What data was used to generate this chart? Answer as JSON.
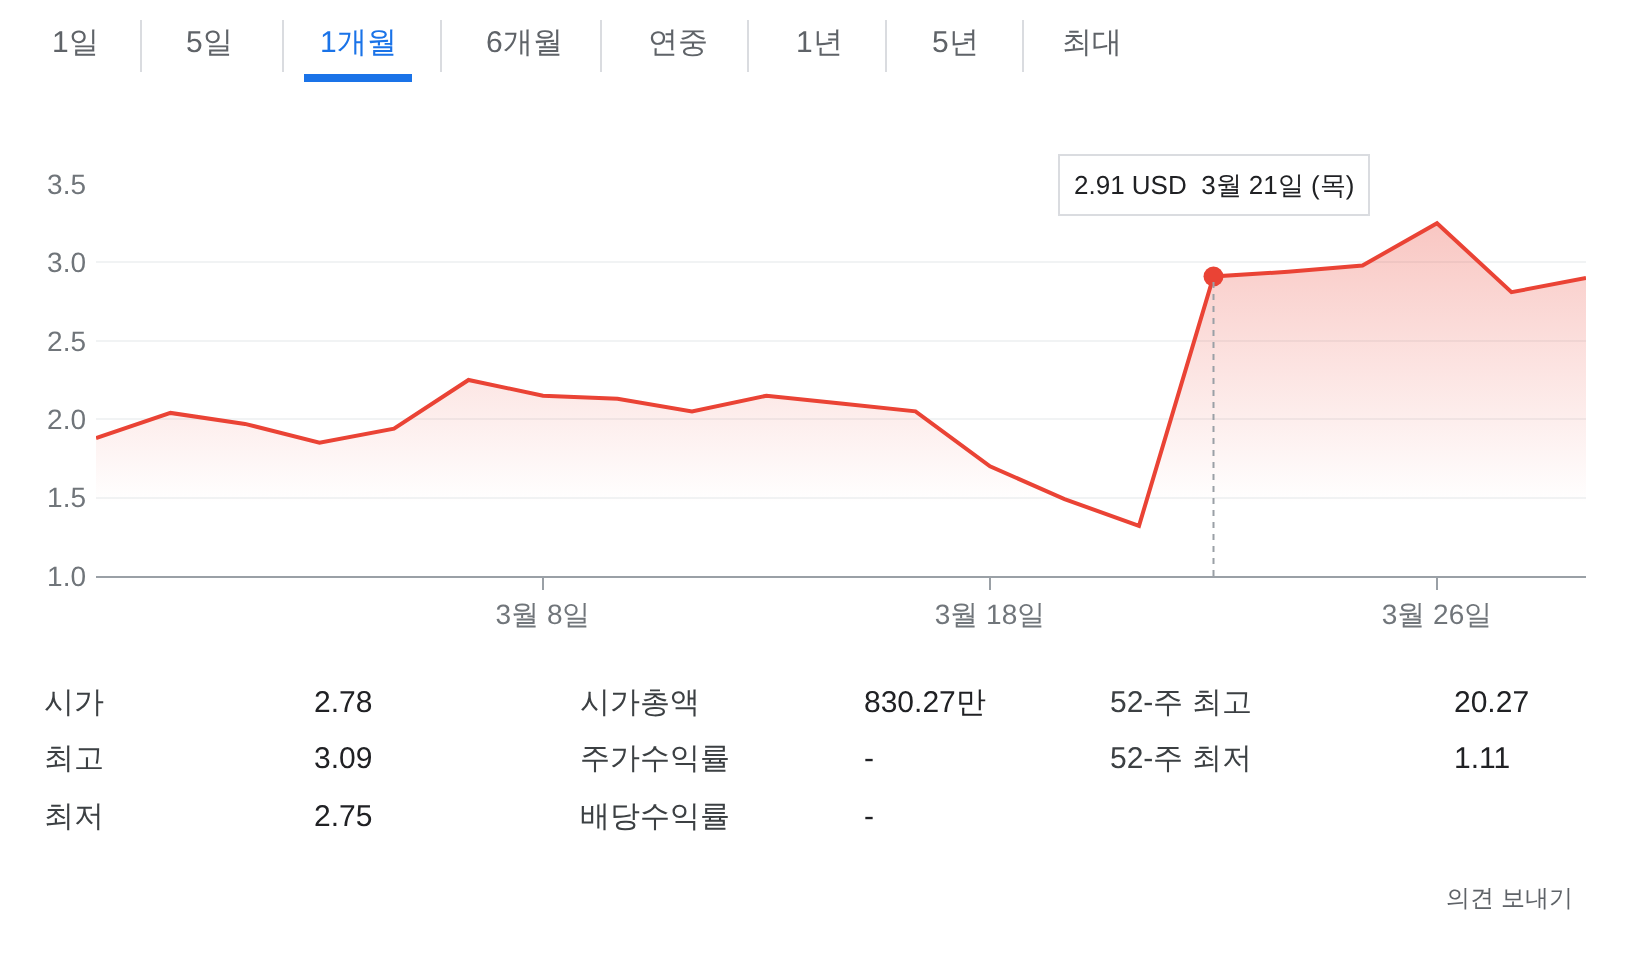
{
  "chart_data": {
    "type": "area",
    "categories": [
      null,
      null,
      null,
      null,
      null,
      null,
      "3월 8일",
      null,
      null,
      null,
      null,
      null,
      "3월 18일",
      null,
      null,
      null,
      null,
      null,
      "3월 26일",
      null,
      null
    ],
    "series": [
      {
        "color": "#ea4335",
        "values": [
          1.88,
          2.04,
          1.97,
          1.85,
          1.94,
          2.25,
          2.15,
          2.13,
          2.05,
          2.15,
          2.1,
          2.05,
          1.7,
          1.49,
          1.32,
          2.91,
          2.94,
          2.98,
          3.25,
          2.81,
          2.9
        ]
      }
    ],
    "ylim": [
      1.0,
      3.5
    ],
    "yticks": [
      {
        "value": 1.0,
        "label": "1.0"
      },
      {
        "value": 1.5,
        "label": "1.5"
      },
      {
        "value": 2.0,
        "label": "2.0"
      },
      {
        "value": 2.5,
        "label": "2.5"
      },
      {
        "value": 3.0,
        "label": "3.0"
      },
      {
        "value": 3.5,
        "label": "3.5"
      }
    ],
    "grid": "y",
    "marker": "none",
    "annotations": [
      "1일",
      "5일",
      "1개월",
      "6개월",
      "연중",
      "1년",
      "5년",
      "최대",
      "시가",
      "2.78",
      "시가총액",
      "830.27만",
      "52-주 최고",
      "20.27",
      "최고",
      "3.09",
      "주가수익률",
      "-",
      "52-주 최저",
      "1.11",
      "최저",
      "2.75",
      "배당수익률",
      "-",
      "의견 보내기",
      {
        "text": "2.91 USD  3월 21일 (목)",
        "y": 2.91
      }
    ]
  }
}
